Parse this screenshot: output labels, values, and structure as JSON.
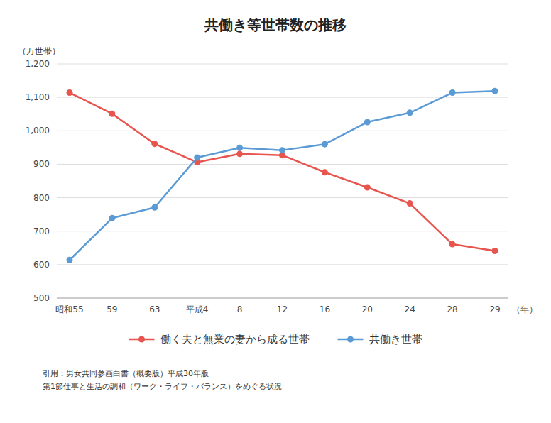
{
  "chart_data": {
    "type": "line",
    "title": "共働き等世帯数の推移",
    "y_label": "（万世帯）",
    "x_label": "（年）",
    "categories": [
      "昭和55",
      "59",
      "63",
      "平成4",
      "8",
      "12",
      "16",
      "20",
      "24",
      "28",
      "29"
    ],
    "series": [
      {
        "name": "働く夫と無業の妻から成る世帯",
        "color": "#e8554e",
        "marker": "circle",
        "values": [
          1114,
          1051,
          961,
          906,
          931,
          927,
          876,
          831,
          783,
          661,
          641
        ]
      },
      {
        "name": "共働き世帯",
        "color": "#5b9bd5",
        "marker": "circle",
        "values": [
          614,
          739,
          771,
          920,
          949,
          942,
          960,
          1026,
          1054,
          1114,
          1119
        ]
      }
    ],
    "ylim": [
      500,
      1200
    ],
    "yticks": [
      500,
      600,
      700,
      800,
      900,
      {
        "value": 1000,
        "label": "1,000"
      },
      {
        "value": 1100,
        "label": "1,100"
      },
      {
        "value": 1200,
        "label": "1,200"
      }
    ],
    "grid": true,
    "legend": "bottom",
    "annotations": [
      "引用：男女共同参画白書（概要版）平成30年版",
      "第1節仕事と生活の調和（ワーク・ライフ・バランス）をめぐる状況"
    ]
  }
}
